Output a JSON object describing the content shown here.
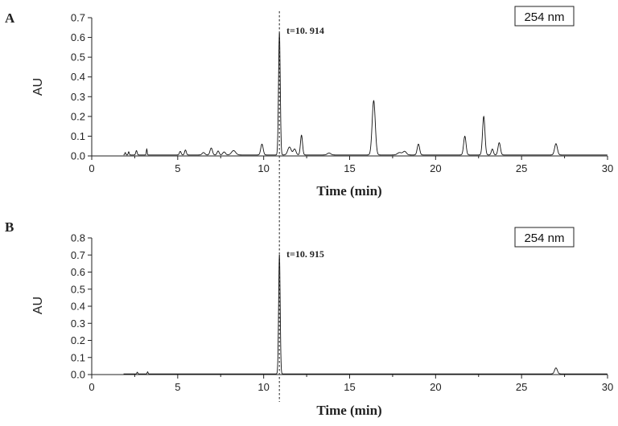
{
  "chart_data": [
    {
      "type": "line",
      "panel_label": "A",
      "xlabel": "Time (min)",
      "ylabel": "AU",
      "xlim": [
        0,
        30
      ],
      "ylim": [
        0,
        0.7
      ],
      "x_ticks": [
        0,
        5,
        10,
        15,
        20,
        25,
        30
      ],
      "y_ticks": [
        0.0,
        0.1,
        0.2,
        0.3,
        0.4,
        0.5,
        0.6,
        0.7
      ],
      "y_tick_labels": [
        "0.0",
        "0.1",
        "0.2",
        "0.3",
        "0.4",
        "0.5",
        "0.6",
        "0.7"
      ],
      "wavelength_label": "254 nm",
      "annotation": "t=10. 914",
      "marker_time": 10.914,
      "baseline": 0.005,
      "peaks": [
        [
          1.95,
          0.012,
          0.03
        ],
        [
          2.15,
          0.016,
          0.03
        ],
        [
          2.6,
          0.022,
          0.04
        ],
        [
          3.2,
          0.03,
          0.025
        ],
        [
          5.15,
          0.018,
          0.05
        ],
        [
          5.45,
          0.025,
          0.05
        ],
        [
          6.5,
          0.012,
          0.08
        ],
        [
          6.95,
          0.035,
          0.07
        ],
        [
          7.35,
          0.02,
          0.06
        ],
        [
          7.7,
          0.015,
          0.08
        ],
        [
          8.25,
          0.022,
          0.12
        ],
        [
          9.9,
          0.055,
          0.07
        ],
        [
          10.914,
          0.62,
          0.05
        ],
        [
          11.5,
          0.04,
          0.1
        ],
        [
          11.8,
          0.03,
          0.08
        ],
        [
          12.2,
          0.1,
          0.06
        ],
        [
          13.8,
          0.01,
          0.1
        ],
        [
          16.4,
          0.275,
          0.09
        ],
        [
          17.9,
          0.012,
          0.12
        ],
        [
          18.2,
          0.018,
          0.1
        ],
        [
          19.0,
          0.055,
          0.07
        ],
        [
          21.7,
          0.095,
          0.07
        ],
        [
          22.8,
          0.195,
          0.07
        ],
        [
          23.3,
          0.03,
          0.06
        ],
        [
          23.7,
          0.062,
          0.07
        ],
        [
          27.0,
          0.057,
          0.08
        ]
      ]
    },
    {
      "type": "line",
      "panel_label": "B",
      "xlabel": "Time (min)",
      "ylabel": "AU",
      "xlim": [
        0,
        30
      ],
      "ylim": [
        0,
        0.8
      ],
      "x_ticks": [
        0,
        5,
        10,
        15,
        20,
        25,
        30
      ],
      "y_ticks": [
        0.0,
        0.1,
        0.2,
        0.3,
        0.4,
        0.5,
        0.6,
        0.7,
        0.8
      ],
      "y_tick_labels": [
        "0.0",
        "0.1",
        "0.2",
        "0.3",
        "0.4",
        "0.5",
        "0.6",
        "0.7",
        "0.8"
      ],
      "wavelength_label": "254 nm",
      "annotation": "t=10. 915",
      "marker_time": 10.915,
      "baseline": 0.004,
      "peaks": [
        [
          2.65,
          0.01,
          0.025
        ],
        [
          3.25,
          0.012,
          0.025
        ],
        [
          10.915,
          0.7,
          0.045
        ],
        [
          27.0,
          0.035,
          0.08
        ]
      ]
    }
  ]
}
